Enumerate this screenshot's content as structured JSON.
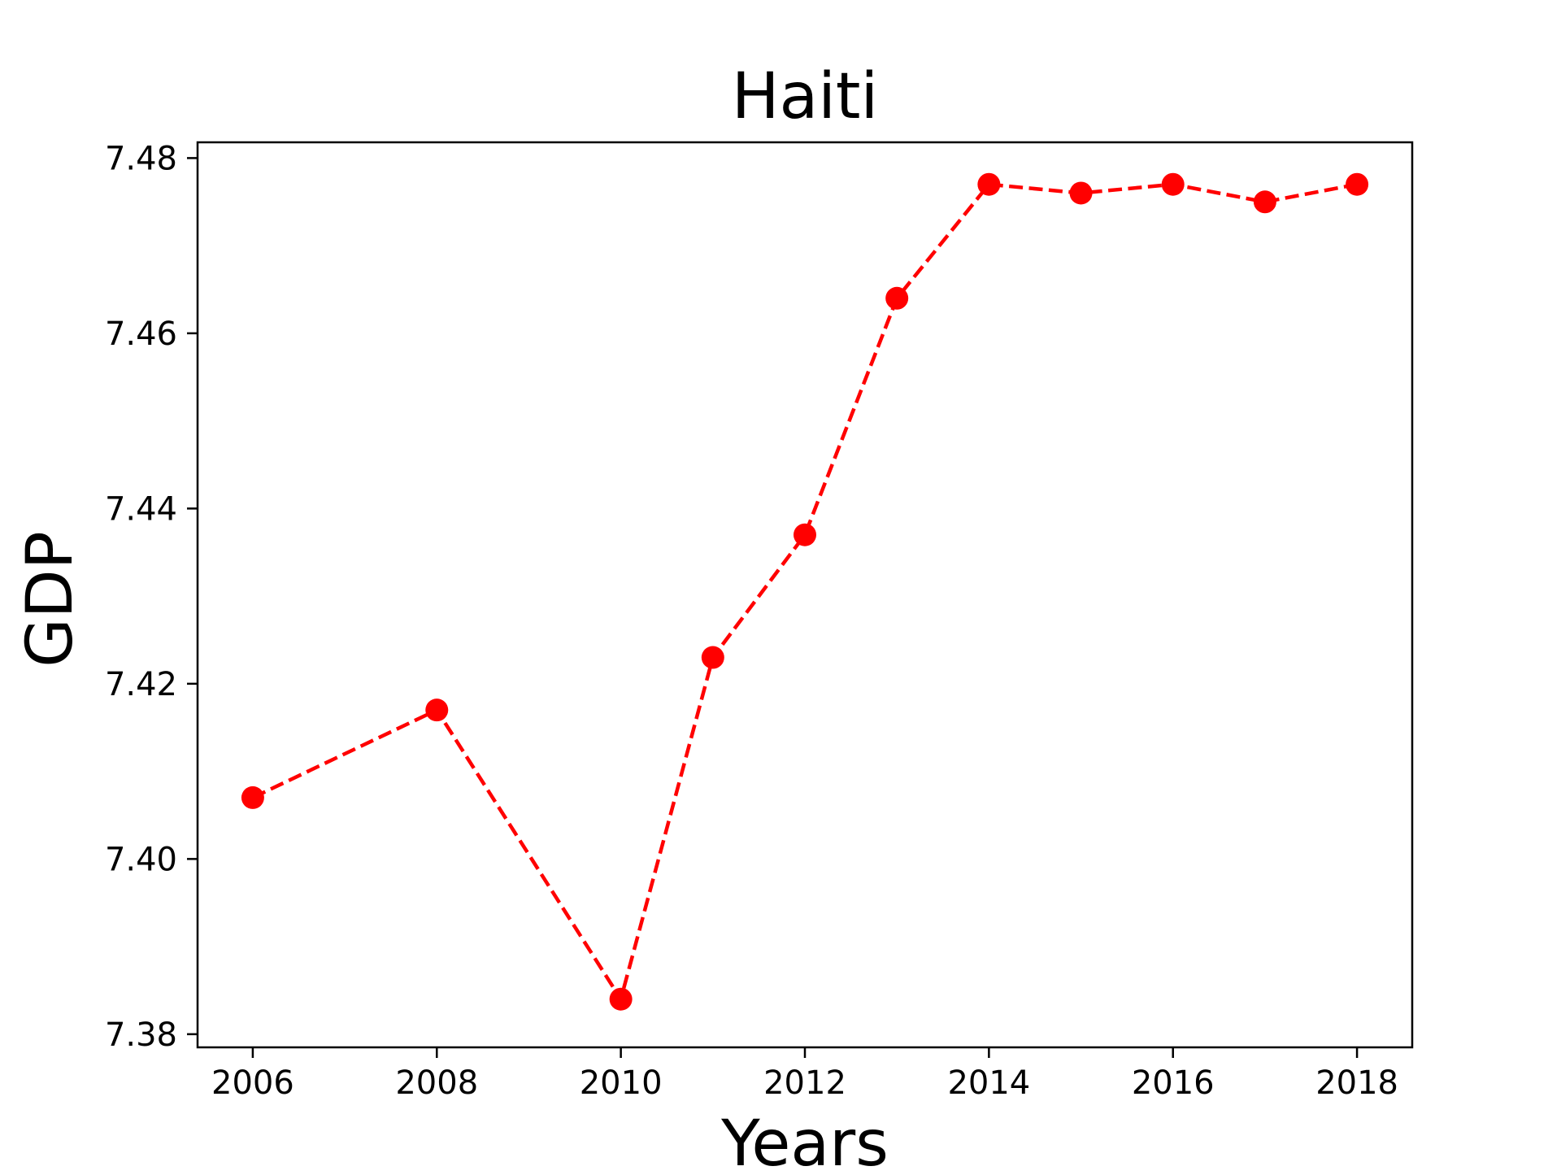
{
  "chart_data": {
    "type": "line",
    "title": "Haiti",
    "xlabel": "Years",
    "ylabel": "GDP",
    "x": [
      2006,
      2008,
      2010,
      2011,
      2012,
      2013,
      2014,
      2015,
      2016,
      2017,
      2018
    ],
    "series": [
      {
        "values": [
          7.407,
          7.417,
          7.384,
          7.423,
          7.437,
          7.464,
          7.477,
          7.476,
          7.477,
          7.475,
          7.477
        ],
        "color": "#ff0000",
        "line_style": "dashed",
        "marker": "circle"
      }
    ],
    "xlim": [
      2005.4,
      2018.6
    ],
    "ylim": [
      7.3785,
      7.4818
    ],
    "xticks": [
      "2006",
      "2008",
      "2010",
      "2012",
      "2014",
      "2016",
      "2018"
    ],
    "yticks": [
      "7.38",
      "7.40",
      "7.42",
      "7.44",
      "7.46",
      "7.48"
    ],
    "grid": false,
    "legend": "none"
  }
}
